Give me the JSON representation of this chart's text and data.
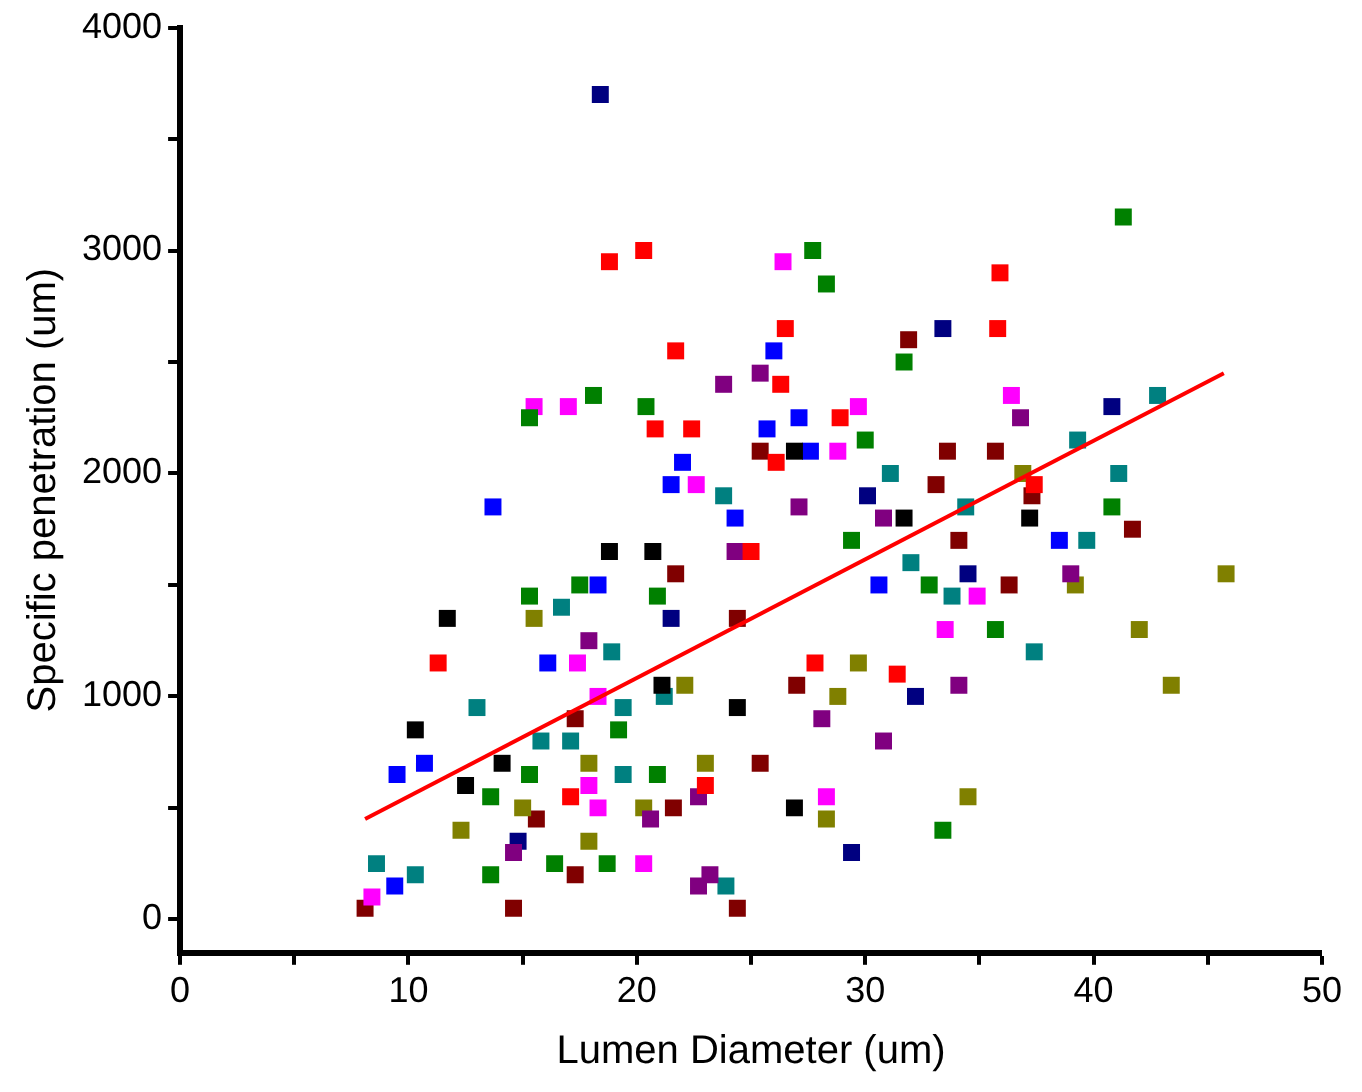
{
  "chart_data": {
    "type": "scatter",
    "xlabel": "Lumen Diameter (um)",
    "ylabel": "Specific penetration (um)",
    "marker": "square",
    "grid": false,
    "legend": false,
    "xlim": [
      0,
      50
    ],
    "xticks": [
      0,
      {
        "value": 5,
        "label": null
      },
      10,
      {
        "value": 15,
        "label": null
      },
      20,
      {
        "value": 25,
        "label": null
      },
      30,
      {
        "value": 35,
        "label": null
      },
      40,
      {
        "value": 45,
        "label": null
      },
      50
    ],
    "ylim": [
      -150,
      4000
    ],
    "yticks": [
      0,
      {
        "value": 500,
        "label": null
      },
      1000,
      {
        "value": 1500,
        "label": null
      },
      2000,
      {
        "value": 2500,
        "label": null
      },
      3000,
      {
        "value": 3500,
        "label": null
      },
      4000
    ],
    "series": [
      {
        "color": "#000000",
        "x": [
          10.3,
          11.7,
          12.5,
          14.1,
          18.8,
          20.7,
          21.1,
          24.4,
          26.9,
          26.9,
          31.7,
          37.2
        ],
        "values": [
          850,
          1350,
          600,
          700,
          1650,
          1650,
          1050,
          950,
          500,
          2100,
          1800,
          1800
        ]
      },
      {
        "color": "#ff0000",
        "x": [
          11.3,
          17.1,
          18.8,
          20.3,
          20.8,
          21.7,
          22.4,
          23.0,
          25.0,
          26.1,
          26.3,
          26.5,
          27.8,
          28.9,
          31.4,
          35.8,
          35.9,
          37.4
        ],
        "values": [
          1150,
          550,
          2950,
          3000,
          2200,
          2550,
          2200,
          600,
          1650,
          2050,
          2400,
          2650,
          1150,
          2250,
          1100,
          2650,
          2900,
          1950
        ]
      },
      {
        "color": "#0000ff",
        "x": [
          9.4,
          9.5,
          10.7,
          13.7,
          16.1,
          18.3,
          21.5,
          22.0,
          24.3,
          25.7,
          26.0,
          27.1,
          27.6,
          30.6,
          38.5
        ],
        "values": [
          150,
          650,
          700,
          1850,
          1150,
          1500,
          1950,
          2050,
          1800,
          2200,
          2550,
          2250,
          2100,
          1500,
          1700
        ]
      },
      {
        "color": "#008000",
        "x": [
          18.1,
          15.3,
          20.4,
          27.7,
          28.3,
          41.3,
          31.7,
          30.0,
          40.8,
          32.8,
          29.4,
          33.4,
          35.7,
          13.6,
          16.4,
          15.3,
          13.6,
          19.2,
          20.9,
          15.3,
          17.5,
          20.9,
          18.7
        ],
        "values": [
          2350,
          2250,
          2300,
          3000,
          2850,
          3150,
          2500,
          2150,
          1850,
          1500,
          1700,
          400,
          1300,
          200,
          250,
          650,
          550,
          850,
          650,
          1450,
          1500,
          1450,
          250
        ]
      },
      {
        "color": "#800080",
        "x": [
          23.8,
          36.8,
          25.4,
          39.0,
          30.8,
          27.1,
          34.1,
          30.8,
          28.1,
          17.9,
          14.6,
          20.6,
          22.7,
          23.2,
          22.7,
          24.3
        ],
        "values": [
          2400,
          2250,
          2450,
          1550,
          1800,
          1850,
          1050,
          800,
          900,
          1250,
          300,
          450,
          550,
          200,
          150,
          1650
        ]
      },
      {
        "color": "#ff00ff",
        "x": [
          15.5,
          17.0,
          26.4,
          36.4,
          29.7,
          28.8,
          34.9,
          33.5,
          28.3,
          17.4,
          18.3,
          17.9,
          18.3,
          20.3,
          8.4,
          22.6
        ],
        "values": [
          2300,
          2300,
          2950,
          2350,
          2300,
          2100,
          1450,
          1300,
          550,
          1150,
          1000,
          600,
          500,
          250,
          100,
          1950
        ]
      },
      {
        "color": "#008080",
        "x": [
          8.6,
          10.3,
          13.0,
          16.7,
          18.9,
          19.4,
          15.8,
          17.1,
          19.4,
          23.9,
          23.8,
          21.2,
          42.8,
          39.3,
          41.1,
          39.7,
          31.1,
          34.4,
          32.0,
          33.8,
          37.4
        ],
        "values": [
          250,
          200,
          950,
          1400,
          1200,
          950,
          800,
          800,
          650,
          150,
          1900,
          1000,
          2350,
          2150,
          2000,
          1700,
          2000,
          1850,
          1600,
          1450,
          1200
        ]
      },
      {
        "color": "#808000",
        "x": [
          42.0,
          43.4,
          34.5,
          28.3,
          29.7,
          28.8,
          45.8,
          39.2,
          36.9,
          12.3,
          15.5,
          17.9,
          17.9,
          23.0,
          22.1,
          15.0,
          20.3
        ],
        "values": [
          1300,
          1050,
          550,
          450,
          1150,
          1000,
          1550,
          1500,
          2000,
          400,
          1350,
          700,
          350,
          700,
          1050,
          500,
          500
        ]
      },
      {
        "color": "#000080",
        "x": [
          18.4,
          33.4,
          40.8,
          34.5,
          30.1,
          29.4,
          32.2,
          21.5,
          14.8
        ],
        "values": [
          3700,
          2650,
          2300,
          1550,
          1900,
          300,
          1000,
          1350,
          350
        ]
      },
      {
        "color": "#800000",
        "x": [
          31.9,
          35.7,
          41.7,
          36.3,
          37.3,
          33.6,
          34.1,
          25.4,
          33.1,
          27.0,
          25.4,
          21.7,
          17.3,
          15.6,
          17.3,
          14.6,
          8.1,
          21.6,
          24.4,
          24.4
        ],
        "values": [
          2600,
          2100,
          1750,
          1500,
          1900,
          2100,
          1700,
          2100,
          1950,
          1050,
          700,
          1550,
          900,
          450,
          200,
          50,
          50,
          500,
          1350,
          50
        ]
      },
      {
        "type": "line",
        "marker": "none",
        "color": "#ff0000",
        "x": [
          8.1,
          45.7
        ],
        "values": [
          450,
          2450
        ]
      }
    ]
  }
}
